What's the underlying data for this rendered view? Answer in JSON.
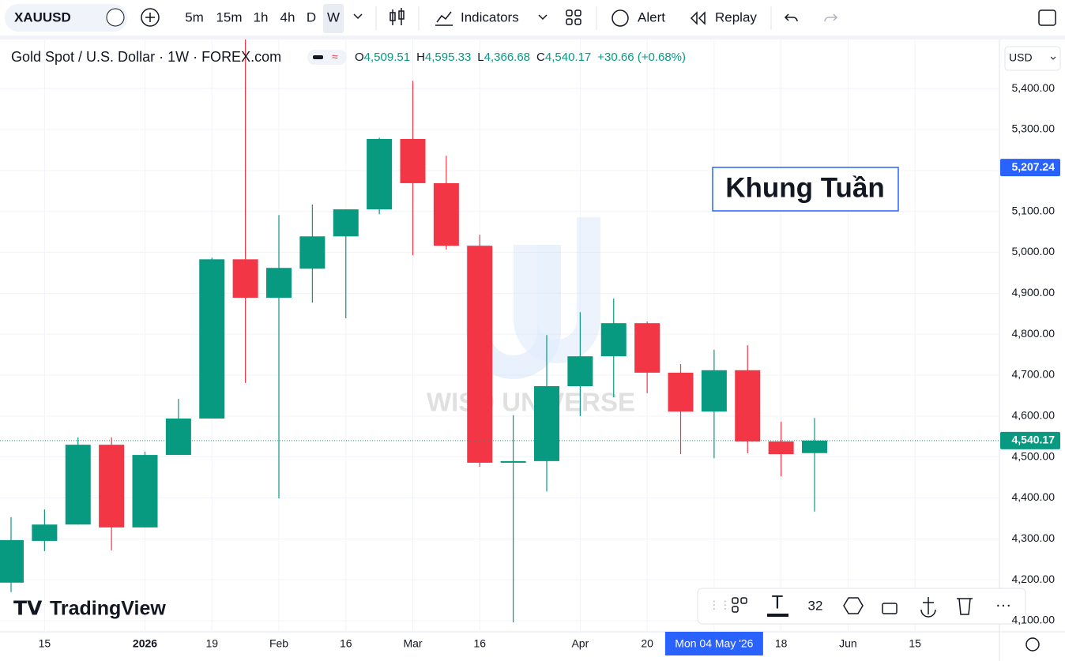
{
  "toolbar": {
    "symbol": "XAUUSD",
    "intervals": [
      "5m",
      "15m",
      "1h",
      "4h",
      "D",
      "W"
    ],
    "active_interval": "W",
    "indicators": "Indicators",
    "alert": "Alert",
    "replay": "Replay"
  },
  "chart_data": {
    "type": "candlestick",
    "title": "Gold Spot / U.S. Dollar · 1W · FOREX.com",
    "ohlc_legend": [
      {
        "key": "O",
        "value": "4,509.51"
      },
      {
        "key": "H",
        "value": "4,595.33"
      },
      {
        "key": "L",
        "value": "4,366.68"
      },
      {
        "key": "C",
        "value": "4,540.17"
      }
    ],
    "change": "+30.66 (+0.68%)",
    "currency": "USD",
    "categories": [
      null,
      "15",
      null,
      null,
      "2026",
      null,
      "19",
      null,
      "Feb",
      null,
      "16",
      null,
      "Mar",
      null,
      "16",
      null,
      null,
      "Apr",
      null,
      "20",
      null,
      "Mon 04 May '26",
      null,
      "18",
      null,
      "Jun",
      null,
      "15"
    ],
    "open": [
      4193,
      4295,
      4335,
      4530,
      4328,
      4505,
      4594,
      4983,
      4889,
      4960,
      5039,
      5105,
      5277,
      5169,
      5016,
      4486,
      4490,
      4673,
      4746,
      4827,
      4706,
      4611,
      4712,
      4538,
      4509.51,
      null,
      null,
      null
    ],
    "high": [
      4353,
      4372,
      4548,
      4548,
      4513,
      4642,
      4987,
      5520,
      5091,
      5117,
      5105,
      5280,
      5419,
      5236,
      5043,
      4602,
      4798,
      4854,
      4887,
      4831,
      4727,
      4762,
      4773,
      4586,
      4595.33,
      null,
      null,
      null
    ],
    "low": [
      4170,
      4270,
      4335,
      4272,
      4328,
      4505,
      4594,
      4681,
      4399,
      4877,
      4839,
      5093,
      4993,
      5007,
      4476,
      4096,
      4416,
      4600,
      4646,
      4656,
      4507,
      4497,
      4509,
      4453,
      4366.68,
      null,
      null,
      null
    ],
    "close": [
      4297,
      4335,
      4530,
      4328,
      4505,
      4594,
      4983,
      4889,
      4962,
      5039,
      5105,
      5277,
      5169,
      5016,
      4486,
      4490,
      4673,
      4746,
      4827,
      4706,
      4611,
      4712,
      4538,
      4507,
      4540.17,
      null,
      null,
      null
    ],
    "up_color": "#089981",
    "down_color": "#f23645",
    "ylim": [
      4073,
      5520
    ],
    "yticks": [
      {
        "value": 4100,
        "label": "4,100.00"
      },
      {
        "value": 4200,
        "label": "4,200.00"
      },
      {
        "value": 4300,
        "label": "4,300.00"
      },
      {
        "value": 4400,
        "label": "4,400.00"
      },
      {
        "value": 4500,
        "label": "4,500.00"
      },
      {
        "value": 4600,
        "label": "4,600.00"
      },
      {
        "value": 4700,
        "label": "4,700.00"
      },
      {
        "value": 4800,
        "label": "4,800.00"
      },
      {
        "value": 4900,
        "label": "4,900.00"
      },
      {
        "value": 5000,
        "label": "5,000.00"
      },
      {
        "value": 5100,
        "label": "5,100.00"
      },
      {
        "value": 5200,
        "label": "5,200.00"
      },
      {
        "value": 5300,
        "label": "5,300.00"
      },
      {
        "value": 5400,
        "label": "5,400.00"
      }
    ],
    "grid": true,
    "last_price": {
      "value": 4540.17,
      "label": "4,540.17"
    },
    "crosshair": {
      "category_index": 21,
      "price": {
        "value": 5207.24,
        "label": "5,207.24"
      }
    },
    "annotation": "Khung Tuần"
  },
  "watermark": "WISD UNIVERSE",
  "branding": "TradingView",
  "drawing_toolbar": {
    "font_size": "32"
  }
}
